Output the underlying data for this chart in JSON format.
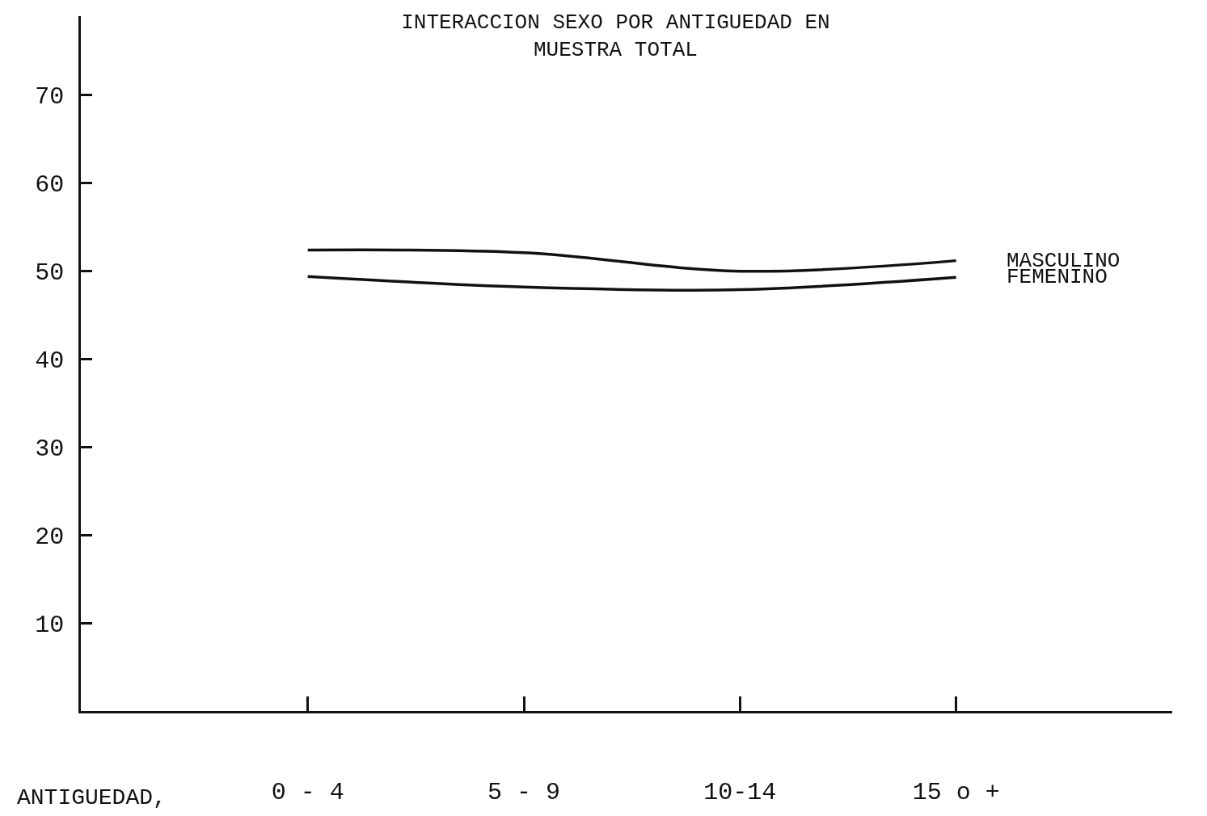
{
  "chart_data": {
    "type": "line",
    "title": "INTERACCION SEXO POR ANTIGUEDAD EN\nMUESTRA TOTAL",
    "xlabel": "ANTIGUEDAD,",
    "categories": [
      "0 - 4",
      "5 - 9",
      "10-14",
      "15 o +"
    ],
    "series": [
      {
        "name": "MASCULINO",
        "color": "#111111",
        "values": [
          52.4,
          52.1,
          50.0,
          51.2
        ]
      },
      {
        "name": "FEMENINO",
        "color": "#111111",
        "values": [
          49.4,
          48.2,
          47.9,
          49.3
        ]
      }
    ],
    "ylim": [
      0,
      79
    ],
    "yticks": [
      10,
      20,
      30,
      40,
      50,
      60,
      70
    ],
    "legend": false,
    "marker": "none",
    "line_style": "solid"
  }
}
